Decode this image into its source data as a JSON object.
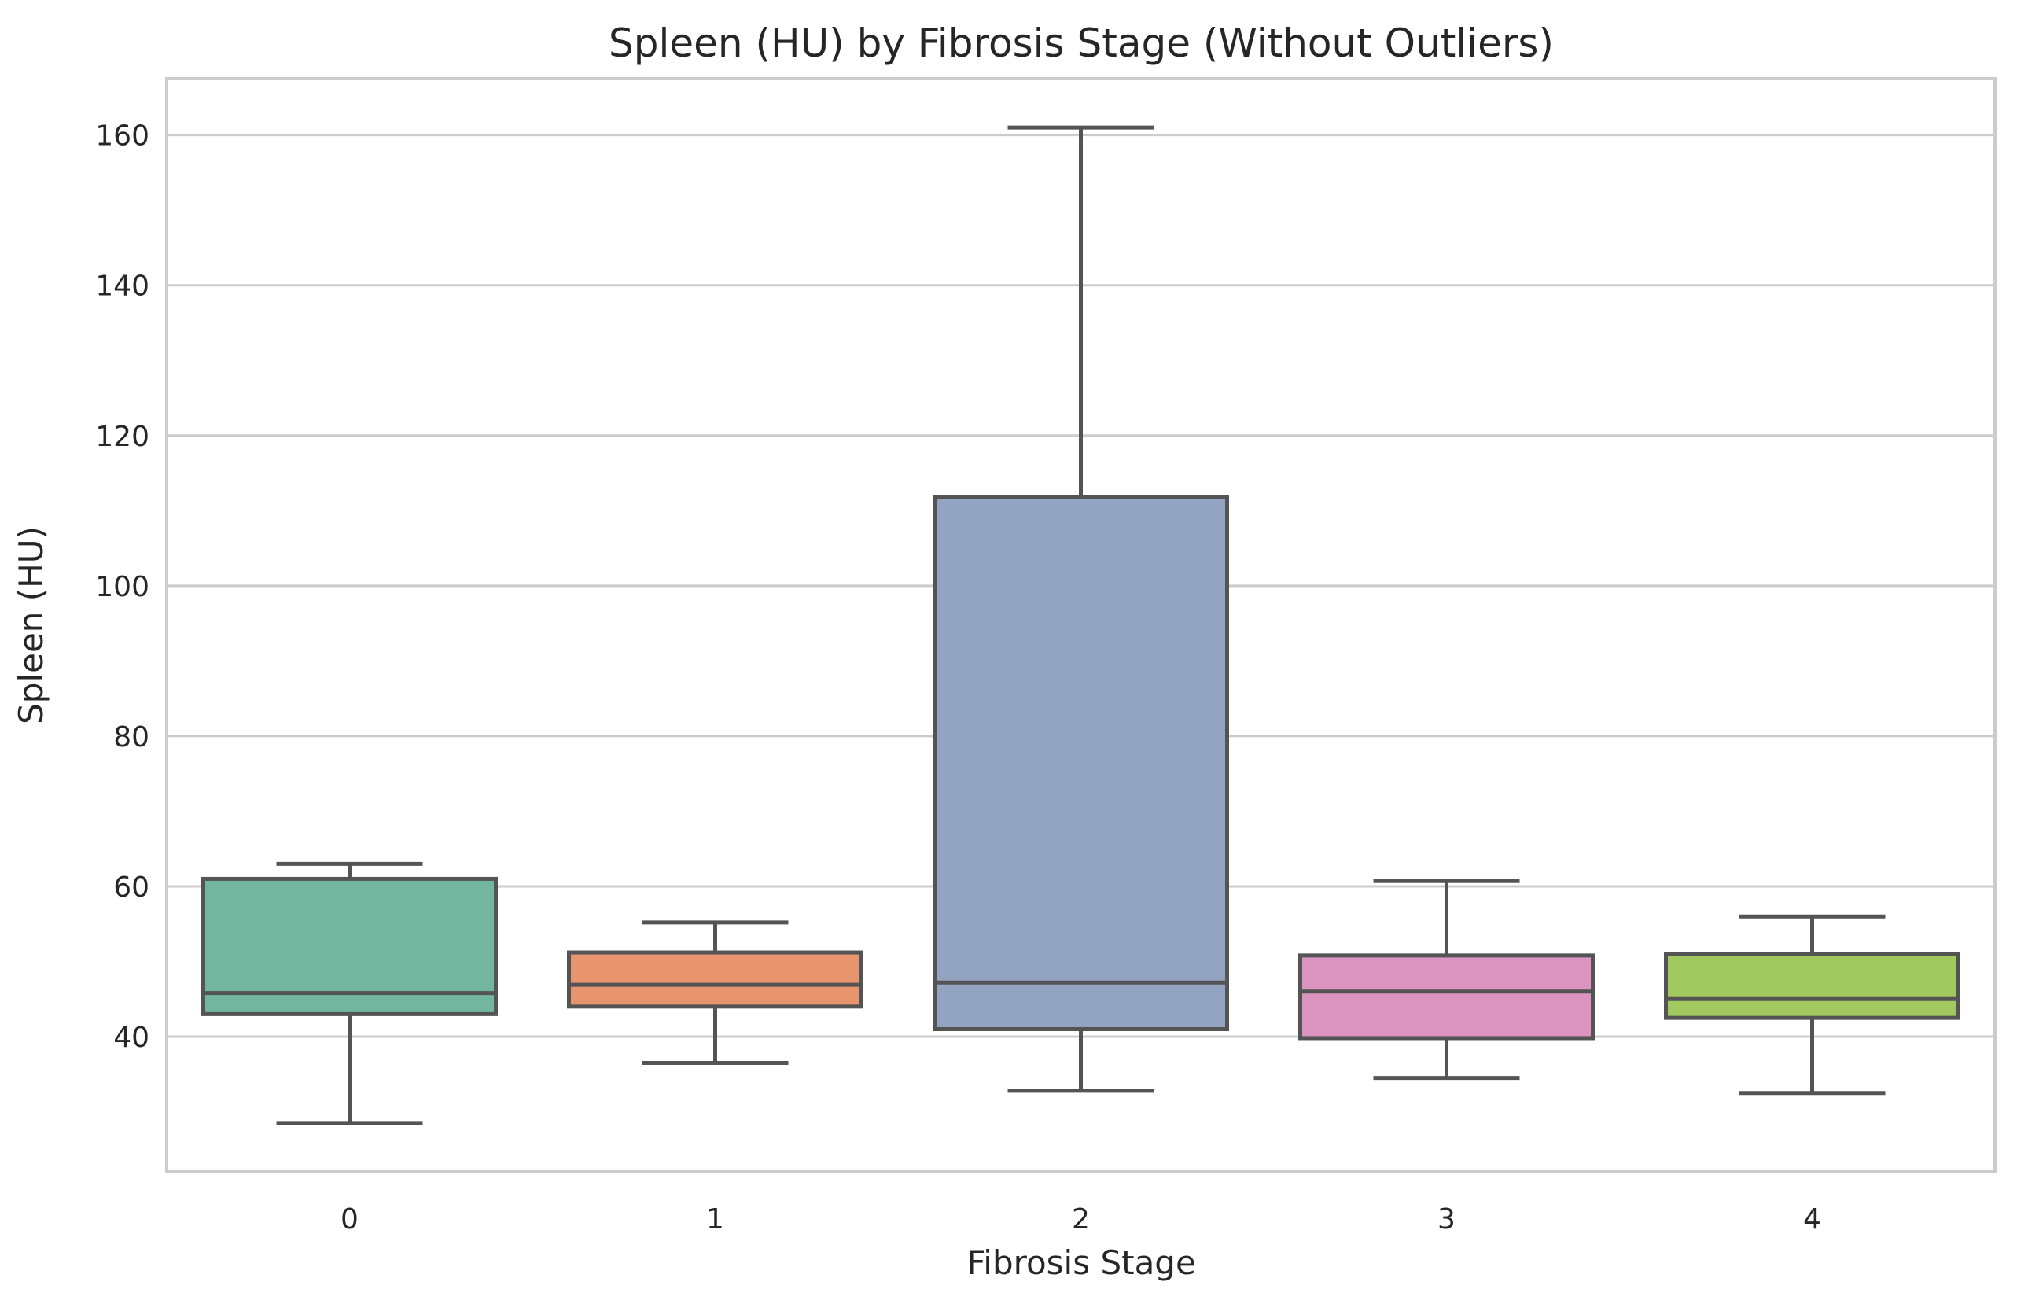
{
  "chart_data": {
    "type": "box",
    "title": "Spleen (HU) by Fibrosis Stage (Without Outliers)",
    "xlabel": "Fibrosis Stage",
    "ylabel": "Spleen (HU)",
    "categories": [
      "0",
      "1",
      "2",
      "3",
      "4"
    ],
    "yticks": [
      40,
      60,
      80,
      100,
      120,
      140,
      160
    ],
    "ylim": [
      22,
      167.5
    ],
    "grid": true,
    "boxes": [
      {
        "category": "0",
        "whisker_low": 28.5,
        "q1": 43,
        "median": 45.8,
        "q3": 61,
        "whisker_high": 63,
        "color": "#72b6a0"
      },
      {
        "category": "1",
        "whisker_low": 36.5,
        "q1": 44,
        "median": 46.9,
        "q3": 51.2,
        "whisker_high": 55.2,
        "color": "#e8946f"
      },
      {
        "category": "2",
        "whisker_low": 32.8,
        "q1": 41,
        "median": 47.2,
        "q3": 111.8,
        "whisker_high": 161,
        "color": "#93a3c2"
      },
      {
        "category": "3",
        "whisker_low": 34.5,
        "q1": 39.8,
        "median": 46,
        "q3": 50.8,
        "whisker_high": 60.7,
        "color": "#da94bf"
      },
      {
        "category": "4",
        "whisker_low": 32.5,
        "q1": 42.5,
        "median": 45,
        "q3": 51,
        "whisker_high": 56,
        "color": "#a2c960"
      }
    ]
  }
}
